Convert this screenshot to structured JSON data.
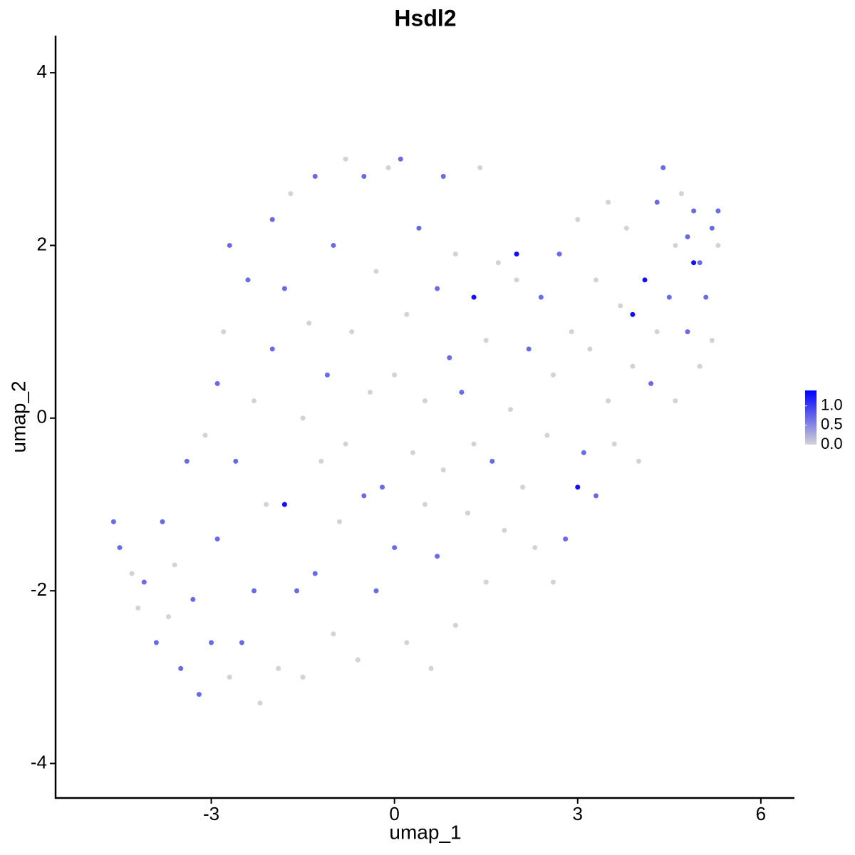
{
  "chart_data": {
    "type": "scatter",
    "title": "Hsdl2",
    "x_label": "umap_1",
    "y_label": "umap_2",
    "x": [
      -4.6,
      -4.5,
      -4.3,
      -4.1,
      -4.2,
      -3.9,
      -3.8,
      -3.7,
      -3.5,
      -3.6,
      -3.4,
      -3.3,
      -3.2,
      -3.1,
      -3.0,
      -2.9,
      -2.9,
      -2.8,
      -2.7,
      -2.7,
      -2.6,
      -2.5,
      -2.4,
      -2.3,
      -2.3,
      -2.2,
      -2.1,
      -2.0,
      -2.0,
      -1.9,
      -1.8,
      -1.8,
      -1.7,
      -1.6,
      -1.5,
      -1.5,
      -1.4,
      -1.3,
      -1.3,
      -1.2,
      -1.1,
      -1.0,
      -1.0,
      -0.9,
      -0.8,
      -0.8,
      -0.7,
      -0.6,
      -0.5,
      -0.5,
      -0.4,
      -0.3,
      -0.3,
      -0.2,
      -0.1,
      0.0,
      0.0,
      0.1,
      0.2,
      0.2,
      0.3,
      0.4,
      0.5,
      0.5,
      0.6,
      0.7,
      0.7,
      0.8,
      0.8,
      0.9,
      1.0,
      1.0,
      1.1,
      1.2,
      1.3,
      1.3,
      1.4,
      1.5,
      1.5,
      1.6,
      1.7,
      1.8,
      1.9,
      2.0,
      2.0,
      2.1,
      2.2,
      2.3,
      2.4,
      2.5,
      2.6,
      2.6,
      2.7,
      2.8,
      2.9,
      3.0,
      3.0,
      3.1,
      3.2,
      3.3,
      3.3,
      3.5,
      3.5,
      3.6,
      3.7,
      3.8,
      3.9,
      3.9,
      4.0,
      4.1,
      4.2,
      4.3,
      4.3,
      4.4,
      4.5,
      4.6,
      4.6,
      4.7,
      4.8,
      4.8,
      4.9,
      4.9,
      5.0,
      5.0,
      5.1,
      5.2,
      5.3,
      5.3,
      5.2
    ],
    "y": [
      -1.2,
      -1.5,
      -1.8,
      -1.9,
      -2.2,
      -2.6,
      -1.2,
      -2.3,
      -2.9,
      -1.7,
      -0.5,
      -2.1,
      -3.2,
      -0.2,
      -2.6,
      -1.4,
      0.4,
      1.0,
      2.0,
      -3.0,
      -0.5,
      -2.6,
      1.6,
      -2.0,
      0.2,
      -3.3,
      -1.0,
      2.3,
      0.8,
      -2.9,
      -1.0,
      1.5,
      2.6,
      -2.0,
      0.0,
      -3.0,
      1.1,
      -1.8,
      2.8,
      -0.5,
      0.5,
      -2.5,
      2.0,
      -1.2,
      3.0,
      -0.3,
      1.0,
      -2.8,
      2.8,
      -0.9,
      0.3,
      1.7,
      -2.0,
      -0.8,
      2.9,
      -1.5,
      0.5,
      3.0,
      -2.6,
      1.2,
      -0.4,
      2.2,
      -1.0,
      0.2,
      -2.9,
      1.5,
      -1.6,
      2.8,
      -0.6,
      0.7,
      -2.4,
      1.9,
      0.3,
      -1.1,
      1.4,
      -0.3,
      2.9,
      -1.9,
      0.9,
      -0.5,
      1.8,
      -1.3,
      0.1,
      1.6,
      1.9,
      -0.8,
      0.8,
      -1.5,
      1.4,
      -0.2,
      0.5,
      -1.9,
      1.9,
      -1.4,
      1.0,
      -0.8,
      2.3,
      -0.4,
      0.8,
      1.6,
      -0.9,
      2.5,
      0.2,
      -0.3,
      1.3,
      2.2,
      1.2,
      0.6,
      -0.5,
      1.6,
      0.4,
      2.5,
      1.0,
      2.9,
      1.4,
      2.0,
      0.2,
      2.6,
      1.0,
      2.1,
      2.4,
      1.8,
      0.6,
      1.8,
      1.4,
      2.2,
      2.4,
      2.0,
      0.9
    ],
    "values": [
      0.7,
      0.7,
      0,
      0.7,
      0,
      0.7,
      0.7,
      0,
      0.7,
      0,
      0.7,
      0.7,
      0.7,
      0,
      0.7,
      0.7,
      0.7,
      0,
      0.7,
      0,
      0.7,
      0.7,
      0.7,
      0.7,
      0,
      0,
      0,
      0.7,
      0.7,
      0,
      1.3,
      0.7,
      0,
      0.7,
      0,
      0,
      0,
      0.7,
      0.7,
      0,
      0.7,
      0,
      0.7,
      0,
      0,
      0,
      0,
      0,
      0.7,
      0.7,
      0,
      0,
      0.7,
      0.7,
      0,
      0.7,
      0,
      0.7,
      0,
      0,
      0,
      0.7,
      0,
      0,
      0,
      0.7,
      0.7,
      0.7,
      0,
      0.7,
      0,
      0,
      0.7,
      0,
      1.3,
      0,
      0,
      0,
      0,
      0.7,
      0,
      0,
      0,
      0,
      1.3,
      0,
      0.7,
      0,
      0.7,
      0,
      0,
      0,
      0.7,
      0.7,
      0,
      1.3,
      0,
      0.7,
      0,
      0,
      0.7,
      0,
      0,
      0,
      0,
      0,
      1.3,
      0,
      0,
      1.3,
      0.7,
      0.7,
      0,
      0.7,
      0.7,
      0,
      0,
      0,
      0.7,
      0.7,
      0.7,
      1.3,
      0,
      0.7,
      0.7,
      0.7,
      0.7,
      0,
      0
    ],
    "low_color": "#d3d3d3",
    "high_color": "#0000ff",
    "xlim": [
      -5.55,
      6.55
    ],
    "ylim": [
      -4.4,
      4.43
    ],
    "xticks": [
      -3,
      0,
      3,
      6
    ],
    "yticks": [
      -4,
      -2,
      0,
      2,
      4
    ],
    "colorlim": [
      0,
      1.4
    ],
    "colorticks": [
      {
        "value": 0,
        "label": "0.0"
      },
      {
        "value": 0.5,
        "label": "0.5"
      },
      {
        "value": 1,
        "label": "1.0"
      }
    ]
  }
}
